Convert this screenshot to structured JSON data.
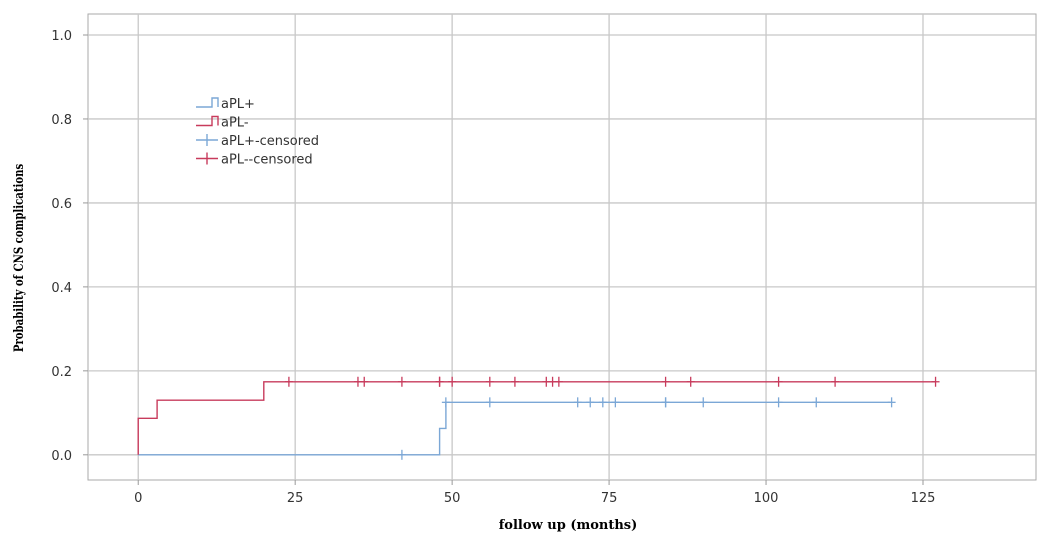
{
  "chart_data": {
    "type": "line",
    "title": "",
    "xlabel": "follow up (months)",
    "ylabel": "Probability of CNS complications",
    "xlim": [
      -8,
      143
    ],
    "ylim": [
      -0.06,
      1.05
    ],
    "x_ticks": [
      0,
      25,
      50,
      75,
      100,
      125
    ],
    "y_ticks": [
      0.0,
      0.2,
      0.4,
      0.6,
      0.8,
      1.0
    ],
    "x_tick_labels": [
      "0",
      "25",
      "50",
      "75",
      "100",
      "125"
    ],
    "y_tick_labels": [
      "0.0",
      "0.2",
      "0.4",
      "0.6",
      "0.8",
      "1.0"
    ],
    "grid": true,
    "legend_position": "top-left",
    "legend": [
      "aPL+",
      "aPL-",
      "aPL+-censored",
      "aPL--censored"
    ],
    "series": [
      {
        "name": "aPL+",
        "color": "#7ba7d6",
        "step": true,
        "points": [
          [
            0,
            0.0
          ],
          [
            48,
            0.0
          ],
          [
            48,
            0.063
          ],
          [
            49,
            0.063
          ],
          [
            49,
            0.125
          ],
          [
            120,
            0.125
          ]
        ],
        "censored": [
          42,
          49,
          56,
          70,
          72,
          74,
          76,
          84,
          84,
          90,
          102,
          108,
          120
        ]
      },
      {
        "name": "aPL-",
        "color": "#c83b5c",
        "step": true,
        "points": [
          [
            0,
            0.0
          ],
          [
            0,
            0.087
          ],
          [
            3,
            0.087
          ],
          [
            3,
            0.13
          ],
          [
            20,
            0.13
          ],
          [
            20,
            0.174
          ],
          [
            127,
            0.174
          ]
        ],
        "censored": [
          24,
          35,
          36,
          42,
          48,
          48,
          50,
          56,
          60,
          65,
          66,
          67,
          84,
          88,
          102,
          111,
          127
        ]
      }
    ]
  }
}
